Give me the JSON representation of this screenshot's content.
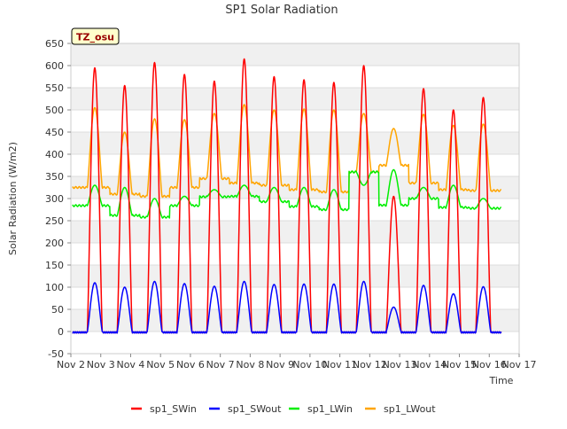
{
  "chart_data": {
    "type": "line",
    "title": "SP1 Solar Radiation",
    "xlabel": "Time",
    "ylabel": "Solar Radiation (W/m2)",
    "station_tag": "TZ_osu",
    "ylim": [
      -50,
      650
    ],
    "yticks": [
      -50,
      0,
      50,
      100,
      150,
      200,
      250,
      300,
      350,
      400,
      450,
      500,
      550,
      600,
      650
    ],
    "xlim": [
      2,
      17
    ],
    "xticks": [
      {
        "v": 2,
        "label": "Nov 2"
      },
      {
        "v": 3,
        "label": "Nov 3"
      },
      {
        "v": 4,
        "label": "Nov 4"
      },
      {
        "v": 5,
        "label": "Nov 5"
      },
      {
        "v": 6,
        "label": "Nov 6"
      },
      {
        "v": 7,
        "label": "Nov 7"
      },
      {
        "v": 8,
        "label": "Nov 8"
      },
      {
        "v": 9,
        "label": "Nov 9"
      },
      {
        "v": 10,
        "label": "Nov 10"
      },
      {
        "v": 11,
        "label": "Nov 11"
      },
      {
        "v": 12,
        "label": "Nov 12"
      },
      {
        "v": 13,
        "label": "Nov 13"
      },
      {
        "v": 14,
        "label": "Nov 14"
      },
      {
        "v": 15,
        "label": "Nov 15"
      },
      {
        "v": 16,
        "label": "Nov 16"
      },
      {
        "v": 17,
        "label": "Nov 17"
      }
    ],
    "grid": true,
    "legend_placement": "bottom",
    "x_start": 2.3,
    "x_end": 16.3,
    "series": [
      {
        "name": "sp1_SWin",
        "color": "#ff0000",
        "values": [
          595,
          555,
          607,
          580,
          565,
          615,
          575,
          568,
          562,
          600,
          305,
          548,
          500,
          528
        ]
      },
      {
        "name": "sp1_SWout",
        "color": "#0000ff",
        "values": [
          110,
          100,
          113,
          108,
          102,
          113,
          106,
          107,
          107,
          113,
          55,
          104,
          85,
          101
        ]
      },
      {
        "name": "sp1_LWin",
        "color": "#00ee00",
        "night": [
          284,
          262,
          258,
          284,
          304,
          305,
          293,
          282,
          275,
          360,
          285,
          300,
          280,
          278
        ],
        "day": [
          330,
          325,
          300,
          305,
          320,
          330,
          325,
          325,
          320,
          330,
          365,
          325,
          330,
          300
        ]
      },
      {
        "name": "sp1_LWout",
        "color": "#ffa500",
        "night": [
          325,
          310,
          305,
          325,
          345,
          335,
          330,
          320,
          315,
          360,
          375,
          335,
          320,
          318
        ],
        "day": [
          505,
          450,
          480,
          478,
          492,
          512,
          500,
          502,
          500,
          492,
          458,
          490,
          465,
          468
        ]
      }
    ]
  }
}
